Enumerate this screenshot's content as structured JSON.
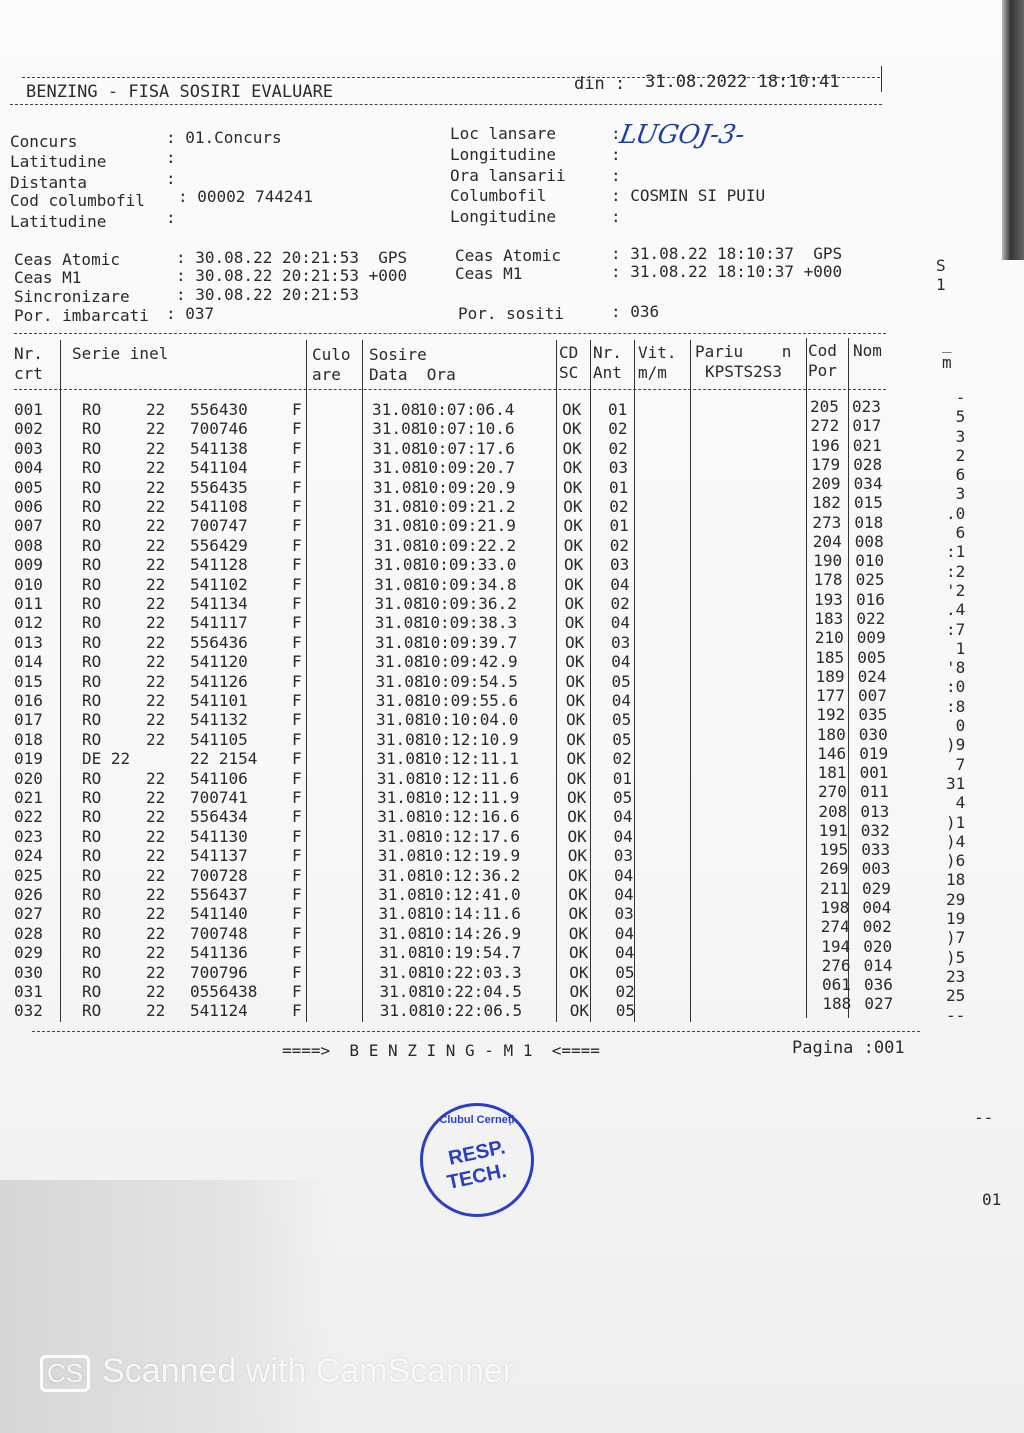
{
  "header": {
    "title": "BENZING - FISA SOSIRI EVALUARE",
    "din_label": "din :",
    "din_value": "31.08.2022 18:10:41"
  },
  "info_left": [
    {
      "label": "Concurs",
      "value": ": 01.Concurs"
    },
    {
      "label": "Latitudine",
      "value": ":"
    },
    {
      "label": "Distanta",
      "value": ":"
    },
    {
      "label": "Cod columbofil",
      "value": ": 00002 744241"
    },
    {
      "label": "Latitudine",
      "value": ":"
    }
  ],
  "info_right": [
    {
      "label": "Loc lansare",
      "value": ":"
    },
    {
      "label": "Longitudine",
      "value": ":"
    },
    {
      "label": "Ora lansarii",
      "value": ":"
    },
    {
      "label": "Columbofil",
      "value": ": COSMIN SI PUIU"
    },
    {
      "label": "Longitudine",
      "value": ":"
    }
  ],
  "handwritten_loc": "LUGOJ-3-",
  "clocks_left": [
    {
      "label": "Ceas Atomic",
      "value": ": 30.08.22 20:21:53  GPS"
    },
    {
      "label": "Ceas M1",
      "value": ": 30.08.22 20:21:53 +000"
    },
    {
      "label": "Sincronizare",
      "value": ": 30.08.22 20:21:53"
    },
    {
      "label": "Por. imbarcati",
      "value": ": 037"
    }
  ],
  "clocks_right": [
    {
      "label": "Ceas Atomic",
      "value": ": 31.08.22 18:10:37  GPS"
    },
    {
      "label": "Ceas M1",
      "value": ": 31.08.22 18:10:37 +000"
    },
    {
      "label": "Por. sositi",
      "value": ": 036"
    }
  ],
  "table": {
    "headers": {
      "nr1": "Nr.",
      "nr2": "crt",
      "serie": "Serie inel",
      "culo1": "Culo",
      "culo2": "are",
      "sosire1": "Sosire",
      "sosire2": "Data  Ora",
      "cd1": "CD",
      "cd2": "SC",
      "ant1": "Nr.",
      "ant2": "Ant",
      "vit1": "Vit.",
      "vit2": "m/m",
      "pariu1": "Pariu    n",
      "pariu2": "KPSTS2S3",
      "cod1": "Cod",
      "cod2": "Por",
      "nom": "Nom"
    },
    "rows": [
      [
        "001",
        "RO",
        "22",
        "556430",
        "F",
        "31.08",
        "10:07:06.4",
        "OK",
        "01",
        "205",
        "023"
      ],
      [
        "002",
        "RO",
        "22",
        "700746",
        "F",
        "31.08",
        "10:07:10.6",
        "OK",
        "02",
        "272",
        "017"
      ],
      [
        "003",
        "RO",
        "22",
        "541138",
        "F",
        "31.08",
        "10:07:17.6",
        "OK",
        "02",
        "196",
        "021"
      ],
      [
        "004",
        "RO",
        "22",
        "541104",
        "F",
        "31.08",
        "10:09:20.7",
        "OK",
        "03",
        "179",
        "028"
      ],
      [
        "005",
        "RO",
        "22",
        "556435",
        "F",
        "31.08",
        "10:09:20.9",
        "OK",
        "01",
        "209",
        "034"
      ],
      [
        "006",
        "RO",
        "22",
        "541108",
        "F",
        "31.08",
        "10:09:21.2",
        "OK",
        "02",
        "182",
        "015"
      ],
      [
        "007",
        "RO",
        "22",
        "700747",
        "F",
        "31.08",
        "10:09:21.9",
        "OK",
        "01",
        "273",
        "018"
      ],
      [
        "008",
        "RO",
        "22",
        "556429",
        "F",
        "31.08",
        "10:09:22.2",
        "OK",
        "02",
        "204",
        "008"
      ],
      [
        "009",
        "RO",
        "22",
        "541128",
        "F",
        "31.08",
        "10:09:33.0",
        "OK",
        "03",
        "190",
        "010"
      ],
      [
        "010",
        "RO",
        "22",
        "541102",
        "F",
        "31.08",
        "10:09:34.8",
        "OK",
        "04",
        "178",
        "025"
      ],
      [
        "011",
        "RO",
        "22",
        "541134",
        "F",
        "31.08",
        "10:09:36.2",
        "OK",
        "02",
        "193",
        "016"
      ],
      [
        "012",
        "RO",
        "22",
        "541117",
        "F",
        "31.08",
        "10:09:38.3",
        "OK",
        "04",
        "183",
        "022"
      ],
      [
        "013",
        "RO",
        "22",
        "556436",
        "F",
        "31.08",
        "10:09:39.7",
        "OK",
        "03",
        "210",
        "009"
      ],
      [
        "014",
        "RO",
        "22",
        "541120",
        "F",
        "31.08",
        "10:09:42.9",
        "OK",
        "04",
        "185",
        "005"
      ],
      [
        "015",
        "RO",
        "22",
        "541126",
        "F",
        "31.08",
        "10:09:54.5",
        "OK",
        "05",
        "189",
        "024"
      ],
      [
        "016",
        "RO",
        "22",
        "541101",
        "F",
        "31.08",
        "10:09:55.6",
        "OK",
        "04",
        "177",
        "007"
      ],
      [
        "017",
        "RO",
        "22",
        "541132",
        "F",
        "31.08",
        "10:10:04.0",
        "OK",
        "05",
        "192",
        "035"
      ],
      [
        "018",
        "RO",
        "22",
        "541105",
        "F",
        "31.08",
        "10:12:10.9",
        "OK",
        "05",
        "180",
        "030"
      ],
      [
        "019",
        "DE 22",
        "",
        "22 2154",
        "F",
        "31.08",
        "10:12:11.1",
        "OK",
        "02",
        "146",
        "019"
      ],
      [
        "020",
        "RO",
        "22",
        "541106",
        "F",
        "31.08",
        "10:12:11.6",
        "OK",
        "01",
        "181",
        "001"
      ],
      [
        "021",
        "RO",
        "22",
        "700741",
        "F",
        "31.08",
        "10:12:11.9",
        "OK",
        "05",
        "270",
        "011"
      ],
      [
        "022",
        "RO",
        "22",
        "556434",
        "F",
        "31.08",
        "10:12:16.6",
        "OK",
        "04",
        "208",
        "013"
      ],
      [
        "023",
        "RO",
        "22",
        "541130",
        "F",
        "31.08",
        "10:12:17.6",
        "OK",
        "04",
        "191",
        "032"
      ],
      [
        "024",
        "RO",
        "22",
        "541137",
        "F",
        "31.08",
        "10:12:19.9",
        "OK",
        "03",
        "195",
        "033"
      ],
      [
        "025",
        "RO",
        "22",
        "700728",
        "F",
        "31.08",
        "10:12:36.2",
        "OK",
        "04",
        "269",
        "003"
      ],
      [
        "026",
        "RO",
        "22",
        "556437",
        "F",
        "31.08",
        "10:12:41.0",
        "OK",
        "04",
        "211",
        "029"
      ],
      [
        "027",
        "RO",
        "22",
        "541140",
        "F",
        "31.08",
        "10:14:11.6",
        "OK",
        "03",
        "198",
        "004"
      ],
      [
        "028",
        "RO",
        "22",
        "700748",
        "F",
        "31.08",
        "10:14:26.9",
        "OK",
        "04",
        "274",
        "002"
      ],
      [
        "029",
        "RO",
        "22",
        "541136",
        "F",
        "31.08",
        "10:19:54.7",
        "OK",
        "04",
        "194",
        "020"
      ],
      [
        "030",
        "RO",
        "22",
        "700796",
        "F",
        "31.08",
        "10:22:03.3",
        "OK",
        "05",
        "276",
        "014"
      ],
      [
        "031",
        "RO",
        "22",
        "0556438",
        "F",
        "31.08",
        "10:22:04.5",
        "OK",
        "02",
        "061",
        "036"
      ],
      [
        "032",
        "RO",
        "22",
        "541124",
        "F",
        "31.08",
        "10:22:06.5",
        "OK",
        "05",
        "188",
        "027"
      ]
    ]
  },
  "footer": {
    "center": "====>  B E N Z I N G - M 1  <====",
    "page": "Pagina :001"
  },
  "stamp": {
    "arc": "Clubul Cerneți",
    "line1": "RESP.",
    "line2": "TECH."
  },
  "side_fragments": {
    "top": "S\n1",
    "m": "_\nm",
    "column": "-\n5\n3\n2\n6\n3\n.0\n6\n:1\n:2\n'2\n.4\n:7\n1\n'8\n:0\n:8\n0\n)9\n7\n31\n4\n)1\n)4\n)6\n18\n29\n19\n)7\n)5\n23\n25\n--",
    "dash": "--",
    "page": "01"
  },
  "watermark": {
    "badge": "CS",
    "text": "Scanned with CamScanner"
  }
}
